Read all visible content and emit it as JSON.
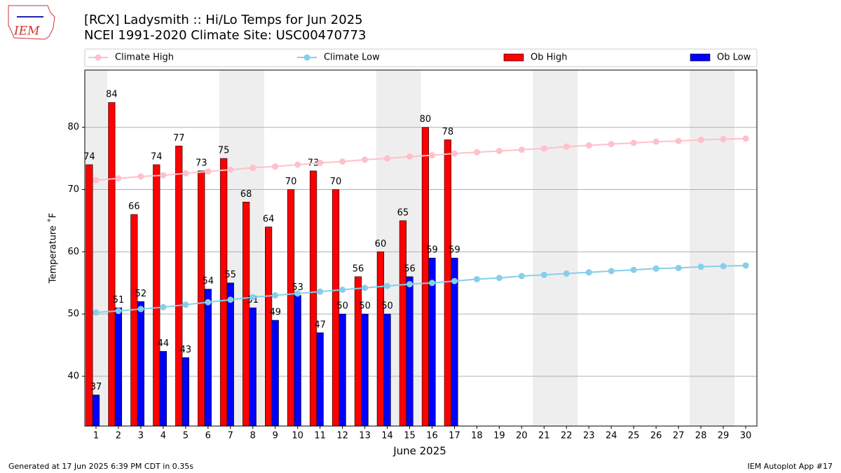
{
  "logo_text": "IEM",
  "footer_left": "Generated at 17 Jun 2025 6:39 PM CDT in 0.35s",
  "footer_right": "IEM Autoplot App #17",
  "chart_data": {
    "type": "bar",
    "title": "[RCX] Ladysmith :: Hi/Lo Temps for Jun 2025",
    "subtitle": "NCEI 1991-2020 Climate Site: USC00470773",
    "x_label": "June 2025",
    "y_label": "Temperature ˚F",
    "x": [
      1,
      2,
      3,
      4,
      5,
      6,
      7,
      8,
      9,
      10,
      11,
      12,
      13,
      14,
      15,
      16,
      17,
      18,
      19,
      20,
      21,
      22,
      23,
      24,
      25,
      26,
      27,
      28,
      29,
      30
    ],
    "xlim": [
      0.5,
      30.5
    ],
    "xticks": [
      1,
      2,
      3,
      4,
      5,
      6,
      7,
      8,
      9,
      10,
      11,
      12,
      13,
      14,
      15,
      16,
      17,
      18,
      19,
      20,
      21,
      22,
      23,
      24,
      25,
      26,
      27,
      28,
      29,
      30
    ],
    "ylim": [
      32,
      89.2
    ],
    "yticks": [
      40,
      50,
      60,
      70,
      80
    ],
    "grid": true,
    "shaded_days": [
      1,
      7,
      8,
      14,
      15,
      21,
      22,
      28,
      29
    ],
    "series": [
      {
        "name": "Climate High",
        "type": "line",
        "color": "#ffc0cb",
        "values": [
          71.5,
          71.8,
          72.1,
          72.3,
          72.6,
          72.9,
          73.2,
          73.5,
          73.7,
          74.0,
          74.3,
          74.5,
          74.8,
          75.0,
          75.3,
          75.5,
          75.8,
          76.0,
          76.2,
          76.4,
          76.6,
          76.9,
          77.1,
          77.3,
          77.5,
          77.7,
          77.8,
          78.0,
          78.1,
          78.2
        ]
      },
      {
        "name": "Climate Low",
        "type": "line",
        "color": "#87ceeb",
        "values": [
          50.25,
          50.5,
          50.8,
          51.1,
          51.5,
          51.9,
          52.3,
          52.7,
          53.0,
          53.3,
          53.6,
          53.9,
          54.2,
          54.5,
          54.8,
          55.0,
          55.3,
          55.6,
          55.8,
          56.1,
          56.3,
          56.5,
          56.7,
          56.9,
          57.1,
          57.3,
          57.4,
          57.6,
          57.7,
          57.8
        ]
      },
      {
        "name": "Ob High",
        "type": "bar",
        "color": "#ff0000",
        "values": [
          74,
          84,
          66,
          74,
          77,
          73,
          75,
          68,
          64,
          70,
          73,
          70,
          56,
          60,
          65,
          80,
          78,
          null,
          null,
          null,
          null,
          null,
          null,
          null,
          null,
          null,
          null,
          null,
          null,
          null
        ]
      },
      {
        "name": "Ob Low",
        "type": "bar",
        "color": "#0000ff",
        "values": [
          37,
          51,
          52,
          44,
          43,
          54,
          55,
          51,
          49,
          53,
          47,
          50,
          50,
          50,
          56,
          59,
          59,
          null,
          null,
          null,
          null,
          null,
          null,
          null,
          null,
          null,
          null,
          null,
          null,
          null
        ]
      }
    ]
  }
}
